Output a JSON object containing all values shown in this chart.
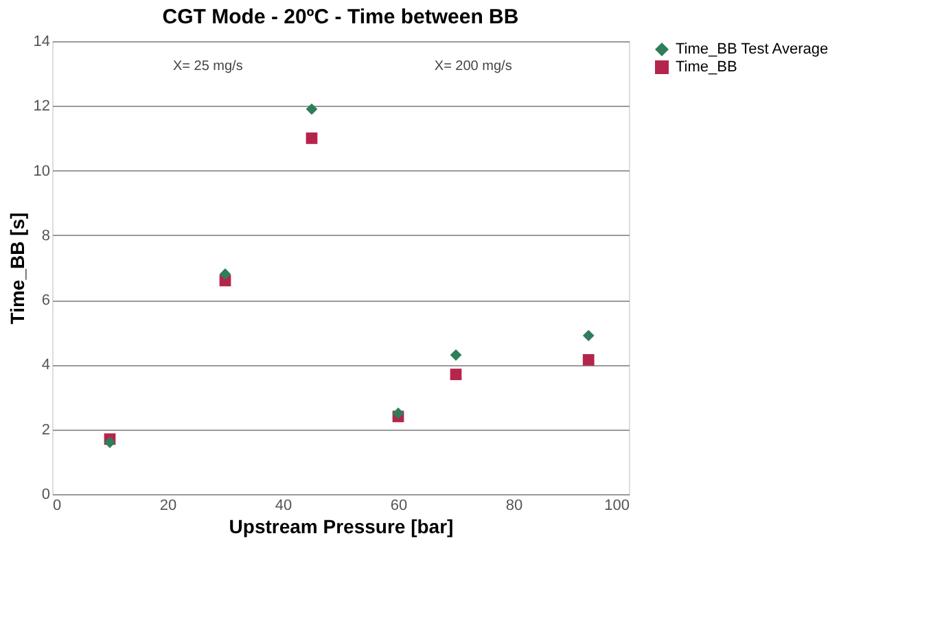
{
  "chart_data": {
    "type": "scatter",
    "title": "CGT Mode - 20ºC - Time between BB",
    "xlabel": "Upstream Pressure [bar]",
    "ylabel": "Time_BB [s]",
    "x": [
      10,
      30,
      45,
      60,
      70,
      93
    ],
    "series": [
      {
        "name": "Time_BB Test Average",
        "color": "#2e7d5b",
        "marker": "diamond",
        "values": [
          1.6,
          6.8,
          11.9,
          2.5,
          4.3,
          4.9
        ]
      },
      {
        "name": "Time_BB",
        "color": "#b5254b",
        "marker": "square",
        "values": [
          1.7,
          6.6,
          11.0,
          2.4,
          3.7,
          4.15
        ]
      }
    ],
    "xlim": [
      0,
      100
    ],
    "xticks": [
      0,
      20,
      40,
      60,
      80,
      100
    ],
    "ylim": [
      0,
      14
    ],
    "yticks": [
      0,
      2,
      4,
      6,
      8,
      10,
      12,
      14
    ],
    "grid": "y",
    "legend": "right",
    "annotations": [
      "X= 25 mg/s",
      "X= 200 mg/s"
    ]
  }
}
